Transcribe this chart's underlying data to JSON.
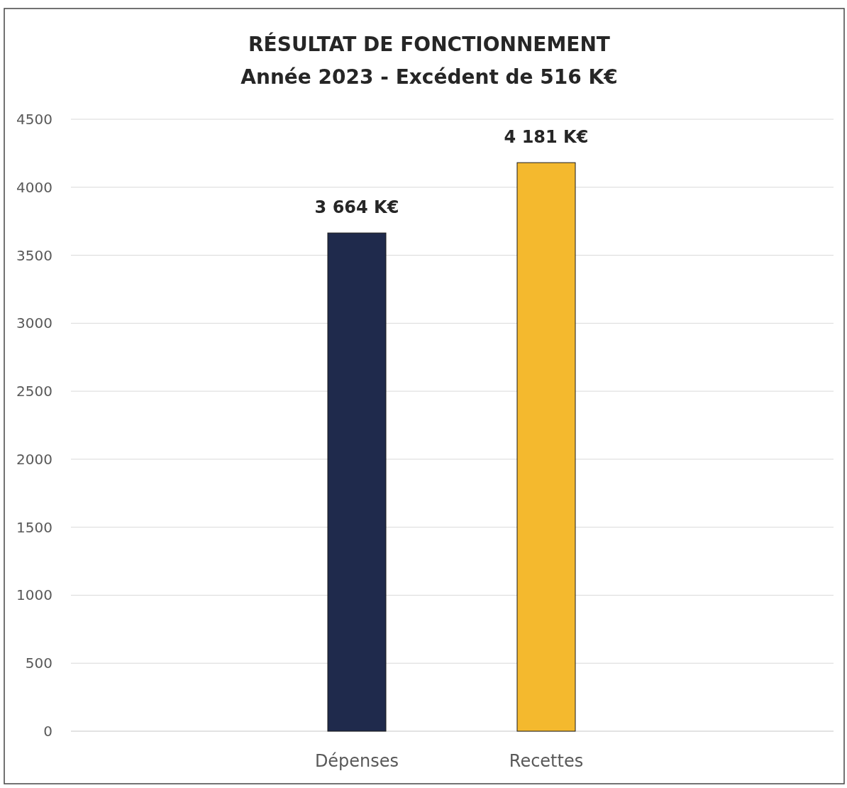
{
  "chart_data": {
    "type": "bar",
    "title": "RÉSULTAT DE FONCTIONNEMENT",
    "subtitle": "Année 2023 - Excédent de 516 K€",
    "categories": [
      "Dépenses",
      "Recettes"
    ],
    "values": [
      3664,
      4181
    ],
    "colors": [
      "#1f2a4c",
      "#f4b92e"
    ],
    "value_labels": [
      "3 664 K€",
      "4 181 K€"
    ],
    "ylim": [
      0,
      4500
    ],
    "yticks": [
      0,
      500,
      1000,
      1500,
      2000,
      2500,
      3000,
      3500,
      4000,
      4500
    ],
    "grid": "y"
  }
}
